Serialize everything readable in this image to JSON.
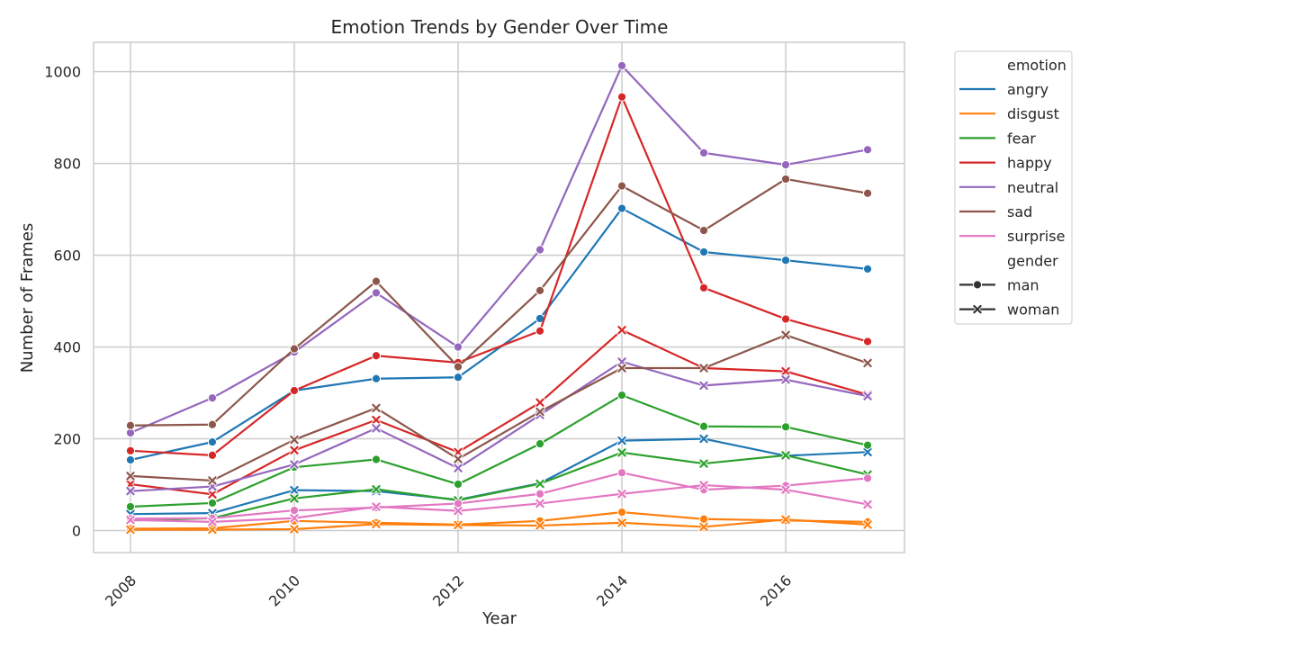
{
  "chart_data": {
    "type": "line",
    "title": "Emotion Trends by Gender Over Time",
    "xlabel": "Year",
    "ylabel": "Number of Frames",
    "x": [
      2008,
      2009,
      2010,
      2011,
      2012,
      2013,
      2014,
      2015,
      2016,
      2017
    ],
    "xticks": [
      2008,
      2010,
      2012,
      2014,
      2016
    ],
    "yticks": [
      0,
      200,
      400,
      600,
      800,
      1000
    ],
    "xlim": [
      2007.55,
      2017.45
    ],
    "ylim": [
      -48,
      1064
    ],
    "grid": true,
    "legend_position": "outside-right",
    "legend": {
      "hue_title": "emotion",
      "style_title": "gender",
      "styles": [
        {
          "label": "man",
          "marker": "circle"
        },
        {
          "label": "woman",
          "marker": "x"
        }
      ]
    },
    "emotions": [
      {
        "name": "angry",
        "color": "#1f77b4"
      },
      {
        "name": "disgust",
        "color": "#ff7f0e"
      },
      {
        "name": "fear",
        "color": "#2ca02c"
      },
      {
        "name": "happy",
        "color": "#d62728"
      },
      {
        "name": "neutral",
        "color": "#9467bd"
      },
      {
        "name": "sad",
        "color": "#8c564b"
      },
      {
        "name": "surprise",
        "color": "#e377c2"
      }
    ],
    "series": [
      {
        "emotion": "angry",
        "gender": "man",
        "values": [
          154,
          193,
          305,
          331,
          334,
          462,
          702,
          607,
          589,
          570
        ]
      },
      {
        "emotion": "angry",
        "gender": "woman",
        "values": [
          36,
          38,
          88,
          86,
          67,
          103,
          196,
          200,
          163,
          171
        ]
      },
      {
        "emotion": "disgust",
        "gender": "man",
        "values": [
          4,
          5,
          21,
          17,
          13,
          21,
          40,
          25,
          22,
          19
        ]
      },
      {
        "emotion": "disgust",
        "gender": "woman",
        "values": [
          2,
          2,
          3,
          14,
          12,
          11,
          17,
          8,
          24,
          13
        ]
      },
      {
        "emotion": "fear",
        "gender": "man",
        "values": [
          52,
          60,
          138,
          155,
          101,
          189,
          295,
          227,
          226,
          186
        ]
      },
      {
        "emotion": "fear",
        "gender": "woman",
        "values": [
          22,
          27,
          70,
          90,
          66,
          102,
          170,
          146,
          164,
          122
        ]
      },
      {
        "emotion": "happy",
        "gender": "man",
        "values": [
          174,
          164,
          305,
          381,
          366,
          435,
          945,
          529,
          461,
          412
        ]
      },
      {
        "emotion": "happy",
        "gender": "woman",
        "values": [
          101,
          79,
          175,
          241,
          171,
          279,
          437,
          354,
          347,
          296
        ]
      },
      {
        "emotion": "neutral",
        "gender": "man",
        "values": [
          213,
          289,
          389,
          518,
          400,
          612,
          1013,
          823,
          797,
          830
        ]
      },
      {
        "emotion": "neutral",
        "gender": "woman",
        "values": [
          86,
          96,
          144,
          223,
          136,
          252,
          368,
          316,
          329,
          293
        ]
      },
      {
        "emotion": "sad",
        "gender": "man",
        "values": [
          229,
          231,
          396,
          543,
          357,
          523,
          751,
          654,
          766,
          735
        ]
      },
      {
        "emotion": "sad",
        "gender": "woman",
        "values": [
          119,
          109,
          198,
          267,
          156,
          259,
          354,
          354,
          426,
          365
        ]
      },
      {
        "emotion": "surprise",
        "gender": "man",
        "values": [
          26,
          27,
          44,
          50,
          59,
          80,
          126,
          89,
          98,
          114
        ]
      },
      {
        "emotion": "surprise",
        "gender": "woman",
        "values": [
          23,
          19,
          27,
          52,
          43,
          59,
          80,
          99,
          89,
          57
        ]
      }
    ]
  }
}
